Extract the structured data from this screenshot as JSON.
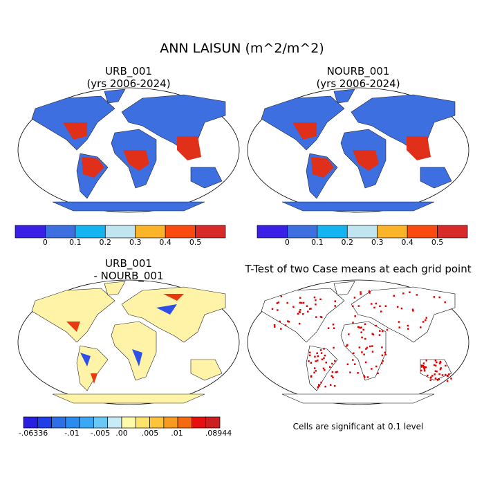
{
  "title": "ANN LAISUN (m^2/m^2)",
  "panels": [
    {
      "title": [
        "URB_001",
        "(yrs 2006-2024)"
      ],
      "colorbar": {
        "colors": [
          "#3a1fe6",
          "#3d6fe0",
          "#14b4f0",
          "#c0e4f0",
          "#fbb42a",
          "#fb4a10",
          "#d92a2a"
        ],
        "labels": [
          "0",
          "0.1",
          "0.2",
          "0.3",
          "0.4",
          "0.5"
        ]
      }
    },
    {
      "title": [
        "NOURB_001",
        "(yrs 2006-2024)"
      ],
      "colorbar": {
        "colors": [
          "#3a1fe6",
          "#3d6fe0",
          "#14b4f0",
          "#c0e4f0",
          "#fbb42a",
          "#fb4a10",
          "#d92a2a"
        ],
        "labels": [
          "0",
          "0.1",
          "0.2",
          "0.3",
          "0.4",
          "0.5"
        ]
      }
    },
    {
      "title": [
        "URB_001",
        "- NOURB_001"
      ],
      "colorbar": {
        "colors": [
          "#2a1fe0",
          "#1f3ee8",
          "#2e6fe8",
          "#2a8cf0",
          "#3aa8f5",
          "#6ac8f5",
          "#c8ecf5",
          "#fffaa8",
          "#fde36a",
          "#fcc43a",
          "#f99a20",
          "#f56a10",
          "#e61010",
          "#cc2020"
        ],
        "labels": [
          "-.06336",
          "-.01",
          "-.005",
          ".00",
          ".005",
          ".01",
          ".08944"
        ]
      }
    },
    {
      "title": [
        "T-Test of two Case means at each grid point"
      ],
      "note": "Cells are significant at 0.1 level"
    }
  ]
}
